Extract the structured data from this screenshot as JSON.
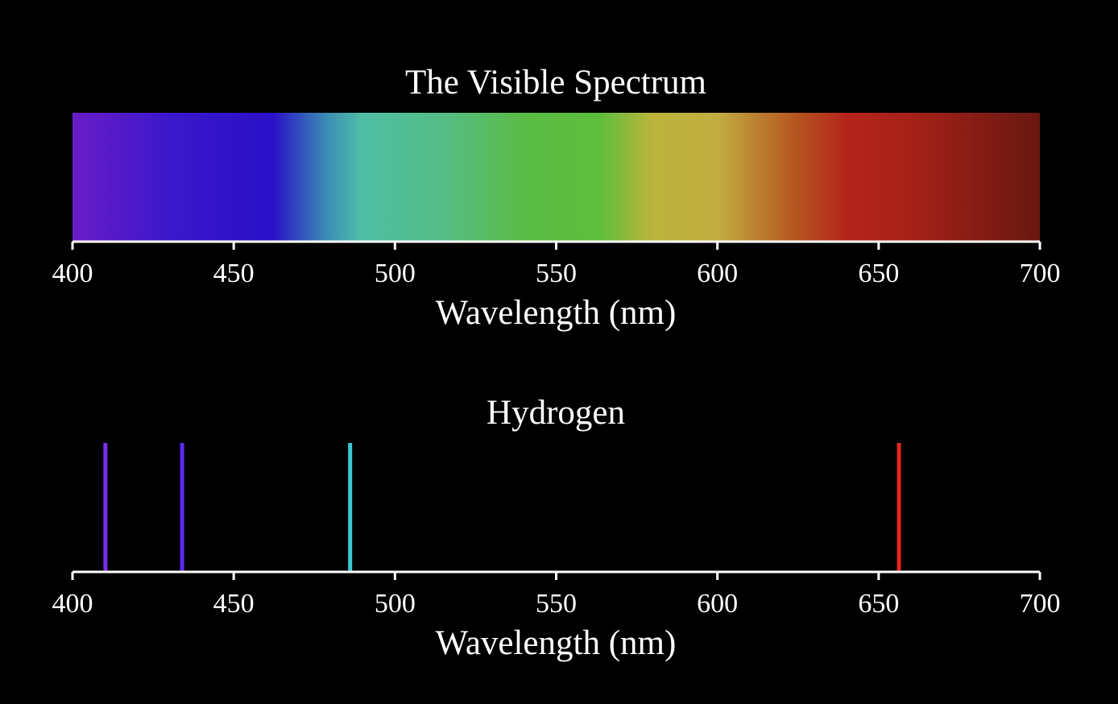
{
  "chart_data": [
    {
      "type": "spectrum",
      "title": "The Visible Spectrum",
      "xlabel": "Wavelength (nm)",
      "xlim": [
        400,
        700
      ],
      "ticks": [
        "400",
        "450",
        "500",
        "550",
        "600",
        "650",
        "700"
      ],
      "gradient": [
        {
          "wavelength": 400,
          "color": "#6a1cc6"
        },
        {
          "wavelength": 430,
          "color": "#3b18cb"
        },
        {
          "wavelength": 462,
          "color": "#2a10c8"
        },
        {
          "wavelength": 478,
          "color": "#3a88b4"
        },
        {
          "wavelength": 490,
          "color": "#4fbfa5"
        },
        {
          "wavelength": 515,
          "color": "#55bd85"
        },
        {
          "wavelength": 540,
          "color": "#5abb44"
        },
        {
          "wavelength": 563,
          "color": "#5cbe3c"
        },
        {
          "wavelength": 580,
          "color": "#bcb43c"
        },
        {
          "wavelength": 600,
          "color": "#c2ad40"
        },
        {
          "wavelength": 625,
          "color": "#b5531f"
        },
        {
          "wavelength": 640,
          "color": "#b5241c"
        },
        {
          "wavelength": 660,
          "color": "#a62118"
        },
        {
          "wavelength": 700,
          "color": "#681810"
        }
      ]
    },
    {
      "type": "emission_lines",
      "title": "Hydrogen",
      "xlabel": "Wavelength (nm)",
      "xlim": [
        400,
        700
      ],
      "ticks": [
        "400",
        "450",
        "500",
        "550",
        "600",
        "650",
        "700"
      ],
      "lines": [
        {
          "wavelength": 410.2,
          "color": "#7b2cf0"
        },
        {
          "wavelength": 434.0,
          "color": "#5b2af0"
        },
        {
          "wavelength": 486.1,
          "color": "#3ec8d4"
        },
        {
          "wavelength": 656.3,
          "color": "#e0281c"
        }
      ]
    }
  ]
}
